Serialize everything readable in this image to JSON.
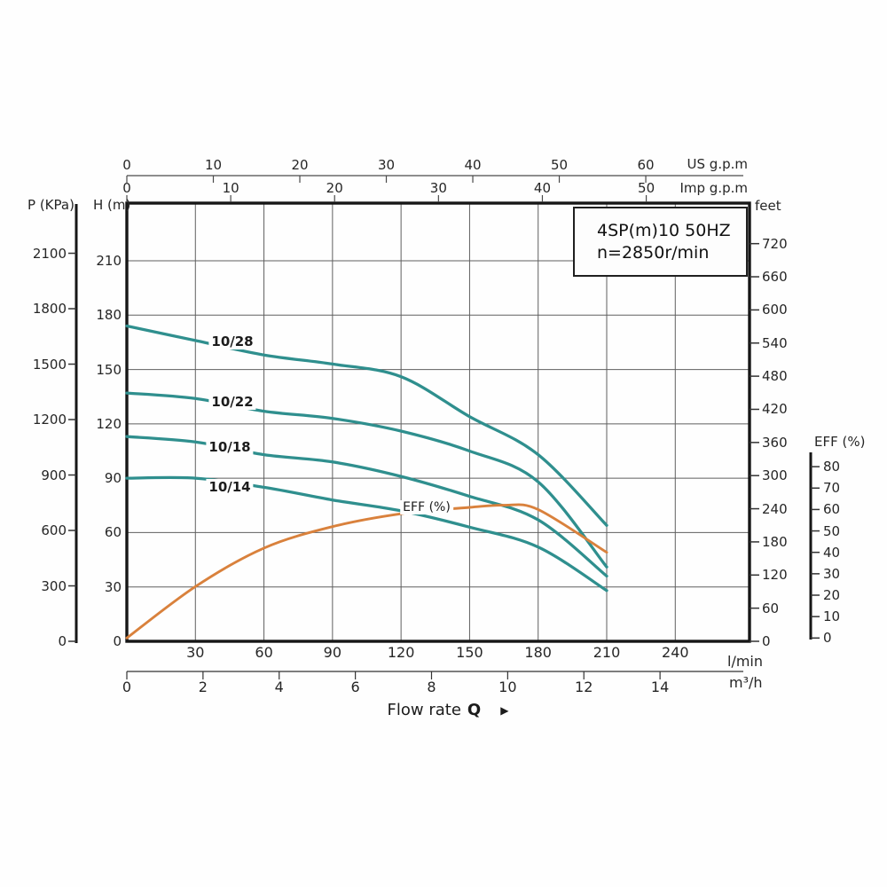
{
  "title_box": {
    "line1": "4SP(m)10  50HZ",
    "line2": "n=2850r/min"
  },
  "axes": {
    "us_gpm": {
      "label": "US g.p.m",
      "ticks": [
        0,
        10,
        20,
        30,
        40,
        50,
        60
      ]
    },
    "imp_gpm": {
      "label": "Imp g.p.m",
      "ticks": [
        0,
        10,
        20,
        30,
        40,
        50
      ]
    },
    "h_m": {
      "label": "H (m)",
      "ticks": [
        0,
        30,
        60,
        90,
        120,
        150,
        180,
        210
      ]
    },
    "p_kpa": {
      "label": "P (KPa)",
      "ticks": [
        0,
        300,
        600,
        900,
        1200,
        1500,
        1800,
        2100
      ]
    },
    "feet": {
      "label": "feet",
      "ticks": [
        0,
        60,
        120,
        180,
        240,
        300,
        360,
        420,
        480,
        540,
        600,
        660,
        720
      ]
    },
    "eff": {
      "label": "EFF (%)",
      "ticks": [
        0,
        10,
        20,
        30,
        40,
        50,
        60,
        70,
        80
      ]
    },
    "lmin": {
      "label": "l/min",
      "ticks": [
        30,
        60,
        90,
        120,
        150,
        180,
        210,
        240
      ]
    },
    "m3h": {
      "label": "m³/h",
      "ticks": [
        0,
        2,
        4,
        6,
        8,
        10,
        12,
        14
      ]
    }
  },
  "flow_label": {
    "text": "Flow rate",
    "q": "Q",
    "arrow": "▶"
  },
  "colors": {
    "head_curve": "#2f8f8e",
    "eff_curve": "#d9813c",
    "grid": "#5f5f5f",
    "frame": "#161616"
  },
  "chart_data": {
    "type": "line",
    "title": "4SP(m)10 50HZ  n=2850r/min",
    "xlabel": "Flow rate Q",
    "x_axis_units": [
      "l/min",
      "m³/h",
      "US g.p.m",
      "Imp g.p.m"
    ],
    "y_axis_units": [
      "H (m)",
      "feet",
      "P (KPa)",
      "EFF (%)"
    ],
    "x_range_lmin": [
      0,
      272
    ],
    "h_range_m": [
      0,
      241
    ],
    "eff_range_pct": [
      0,
      85
    ],
    "grid": true,
    "x_lmin": [
      0,
      30,
      60,
      90,
      120,
      150,
      180,
      210
    ],
    "series": [
      {
        "name": "10/28",
        "kind": "head",
        "unit": "m",
        "values": [
          174,
          166,
          158,
          153,
          146,
          124,
          103,
          64
        ]
      },
      {
        "name": "10/22",
        "kind": "head",
        "unit": "m",
        "values": [
          137,
          134,
          127,
          123,
          116,
          105,
          88,
          41
        ]
      },
      {
        "name": "10/18",
        "kind": "head",
        "unit": "m",
        "values": [
          113,
          110,
          103,
          99,
          91,
          80,
          67,
          36
        ]
      },
      {
        "name": "10/14",
        "kind": "head",
        "unit": "m",
        "values": [
          90,
          90,
          85,
          78,
          72,
          63,
          52,
          28
        ]
      },
      {
        "name": "EFF (%)",
        "kind": "efficiency",
        "unit": "%",
        "x": [
          0,
          30,
          60,
          90,
          120,
          150,
          165,
          180,
          210
        ],
        "values": [
          0,
          24,
          42,
          52,
          58,
          61,
          62,
          60,
          40
        ]
      }
    ]
  }
}
